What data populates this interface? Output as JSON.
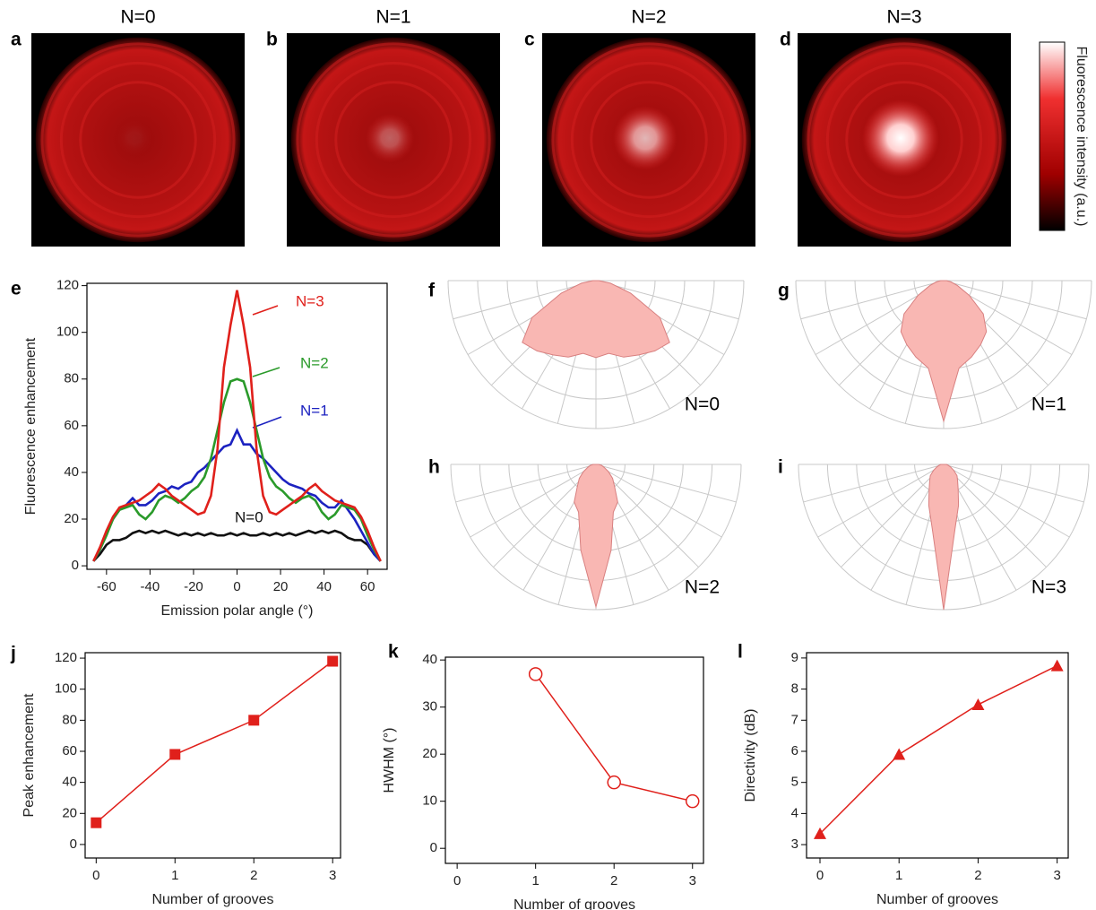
{
  "colorbar": {
    "label": "Fluorescence intensity (a.u.)"
  },
  "chart_data": [
    {
      "type": "image",
      "label": "a",
      "title": "N=0"
    },
    {
      "type": "image",
      "label": "b",
      "title": "N=1"
    },
    {
      "type": "image",
      "label": "c",
      "title": "N=2"
    },
    {
      "type": "image",
      "label": "d",
      "title": "N=3"
    },
    {
      "type": "line",
      "label": "e",
      "x": [
        -66,
        -63,
        -60,
        -57,
        -54,
        -51,
        -48,
        -45,
        -42,
        -39,
        -36,
        -33,
        -30,
        -27,
        -24,
        -21,
        -18,
        -15,
        -12,
        -9,
        -6,
        -3,
        0,
        3,
        6,
        9,
        12,
        15,
        18,
        21,
        24,
        27,
        30,
        33,
        36,
        39,
        42,
        45,
        48,
        51,
        54,
        57,
        60,
        63,
        66
      ],
      "series": [
        {
          "name": "N=0",
          "color": "#111111",
          "values": [
            2,
            5,
            9,
            11,
            11,
            12,
            14,
            15,
            14,
            15,
            14,
            15,
            14,
            13,
            14,
            13,
            14,
            13,
            14,
            13,
            13,
            14,
            13,
            14,
            13,
            13,
            14,
            13,
            14,
            13,
            14,
            13,
            14,
            15,
            14,
            15,
            14,
            15,
            14,
            12,
            11,
            11,
            9,
            5,
            2
          ]
        },
        {
          "name": "N=1",
          "color": "#1c22c0",
          "values": [
            2,
            7,
            14,
            20,
            24,
            26,
            29,
            26,
            26,
            28,
            31,
            32,
            34,
            33,
            35,
            36,
            40,
            42,
            45,
            48,
            51,
            52,
            58,
            52,
            52,
            48,
            46,
            43,
            40,
            37,
            35,
            34,
            33,
            31,
            30,
            27,
            25,
            25,
            28,
            24,
            20,
            15,
            10,
            5,
            2
          ]
        },
        {
          "name": "N=2",
          "color": "#2a9a2a",
          "values": [
            2,
            7,
            13,
            20,
            24,
            25,
            26,
            22,
            20,
            23,
            28,
            30,
            29,
            27,
            29,
            32,
            34,
            38,
            46,
            58,
            70,
            79,
            80,
            79,
            70,
            58,
            46,
            38,
            34,
            32,
            29,
            27,
            29,
            30,
            28,
            23,
            20,
            22,
            26,
            25,
            24,
            20,
            13,
            7,
            2
          ]
        },
        {
          "name": "N=3",
          "color": "#e0201b",
          "values": [
            2,
            8,
            15,
            21,
            25,
            26,
            27,
            28,
            30,
            32,
            35,
            33,
            30,
            28,
            26,
            24,
            22,
            23,
            30,
            50,
            85,
            103,
            118,
            103,
            85,
            50,
            30,
            23,
            22,
            24,
            26,
            28,
            30,
            33,
            35,
            32,
            30,
            28,
            27,
            26,
            25,
            21,
            15,
            8,
            2
          ]
        }
      ],
      "xlim": [
        -69,
        69
      ],
      "ylim": [
        -1.5,
        121
      ],
      "xticks": [
        -60,
        -40,
        -20,
        0,
        20,
        40,
        60
      ],
      "yticks": [
        0,
        20,
        40,
        60,
        80,
        100,
        120
      ],
      "xlabel": "Emission polar angle (°)",
      "ylabel": "Fluorescence enhancement"
    },
    {
      "type": "polar",
      "label": "f",
      "title": "N=0",
      "color": "#f9b7b3",
      "theta": [
        -90,
        -80,
        -70,
        -60,
        -50,
        -40,
        -30,
        -20,
        -10,
        0,
        10,
        20,
        30,
        40,
        50,
        60,
        70,
        80,
        90
      ],
      "r": [
        0.02,
        0.1,
        0.25,
        0.5,
        0.65,
        0.62,
        0.58,
        0.55,
        0.5,
        0.52,
        0.5,
        0.55,
        0.58,
        0.62,
        0.65,
        0.5,
        0.25,
        0.1,
        0.02
      ],
      "rlim": [
        0,
        1
      ],
      "rticks": [
        0.2,
        0.4,
        0.6,
        0.8,
        1
      ],
      "thetaticks": [
        -90,
        -75,
        -60,
        -45,
        -30,
        -15,
        0,
        15,
        30,
        45,
        60,
        75,
        90
      ]
    },
    {
      "type": "polar",
      "label": "g",
      "title": "N=1",
      "color": "#f9b7b3",
      "theta": [
        -90,
        -80,
        -70,
        -60,
        -50,
        -40,
        -30,
        -20,
        -10,
        0,
        10,
        20,
        30,
        40,
        50,
        60,
        70,
        80,
        90
      ],
      "r": [
        0.02,
        0.05,
        0.1,
        0.2,
        0.35,
        0.45,
        0.5,
        0.55,
        0.6,
        0.95,
        0.6,
        0.55,
        0.5,
        0.45,
        0.35,
        0.2,
        0.1,
        0.05,
        0.02
      ],
      "rlim": [
        0,
        1
      ],
      "rticks": [
        0.2,
        0.4,
        0.6,
        0.8,
        1
      ],
      "thetaticks": [
        -90,
        -75,
        -60,
        -45,
        -30,
        -15,
        0,
        15,
        30,
        45,
        60,
        75,
        90
      ]
    },
    {
      "type": "polar",
      "label": "h",
      "title": "N=2",
      "color": "#f9b7b3",
      "theta": [
        -90,
        -80,
        -70,
        -60,
        -50,
        -40,
        -30,
        -20,
        -10,
        0,
        10,
        20,
        30,
        40,
        50,
        60,
        70,
        80,
        90
      ],
      "r": [
        0.02,
        0.04,
        0.06,
        0.1,
        0.15,
        0.2,
        0.3,
        0.35,
        0.6,
        0.98,
        0.6,
        0.35,
        0.3,
        0.2,
        0.15,
        0.1,
        0.06,
        0.04,
        0.02
      ],
      "rlim": [
        0,
        1
      ],
      "rticks": [
        0.2,
        0.4,
        0.6,
        0.8,
        1
      ],
      "thetaticks": [
        -90,
        -75,
        -60,
        -45,
        -30,
        -15,
        0,
        15,
        30,
        45,
        60,
        75,
        90
      ]
    },
    {
      "type": "polar",
      "label": "i",
      "title": "N=3",
      "color": "#f9b7b3",
      "theta": [
        -90,
        -80,
        -70,
        -60,
        -50,
        -40,
        -30,
        -20,
        -10,
        0,
        10,
        20,
        30,
        40,
        50,
        60,
        70,
        80,
        90
      ],
      "r": [
        0.02,
        0.03,
        0.05,
        0.08,
        0.12,
        0.15,
        0.2,
        0.3,
        0.45,
        1.0,
        0.45,
        0.3,
        0.2,
        0.15,
        0.12,
        0.08,
        0.05,
        0.03,
        0.02
      ],
      "rlim": [
        0,
        1
      ],
      "rticks": [
        0.2,
        0.4,
        0.6,
        0.8,
        1
      ],
      "thetaticks": [
        -90,
        -75,
        -60,
        -45,
        -30,
        -15,
        0,
        15,
        30,
        45,
        60,
        75,
        90
      ]
    },
    {
      "type": "line",
      "label": "j",
      "marker": "square",
      "color": "#e0201b",
      "x": [
        0,
        1,
        2,
        3
      ],
      "values": [
        14,
        58,
        80,
        118
      ],
      "xlim": [
        -0.14,
        3.1
      ],
      "ylim": [
        -8.7,
        123.5
      ],
      "xticks": [
        0,
        1,
        2,
        3
      ],
      "yticks": [
        0,
        20,
        40,
        60,
        80,
        100,
        120
      ],
      "xlabel": "Number of grooves",
      "ylabel": "Peak enhancement"
    },
    {
      "type": "line",
      "label": "k",
      "marker": "circle",
      "color": "#e0201b",
      "x": [
        1,
        2,
        3
      ],
      "values": [
        37,
        14,
        10
      ],
      "xlim": [
        -0.15,
        3.14
      ],
      "ylim": [
        -3.2,
        40.6
      ],
      "xticks": [
        0,
        1,
        2,
        3
      ],
      "yticks": [
        0,
        10,
        20,
        30,
        40
      ],
      "xlabel": "Number of grooves",
      "ylabel": "HWHM (°)"
    },
    {
      "type": "line",
      "label": "l",
      "marker": "triangle",
      "color": "#e0201b",
      "x": [
        0,
        1,
        2,
        3
      ],
      "values": [
        3.35,
        5.9,
        7.5,
        8.75
      ],
      "xlim": [
        -0.17,
        3.14
      ],
      "ylim": [
        2.57,
        9.17
      ],
      "xticks": [
        0,
        1,
        2,
        3
      ],
      "yticks": [
        3,
        4,
        5,
        6,
        7,
        8,
        9
      ],
      "xlabel": "Number of grooves",
      "ylabel": "Directivity (dB)"
    }
  ]
}
